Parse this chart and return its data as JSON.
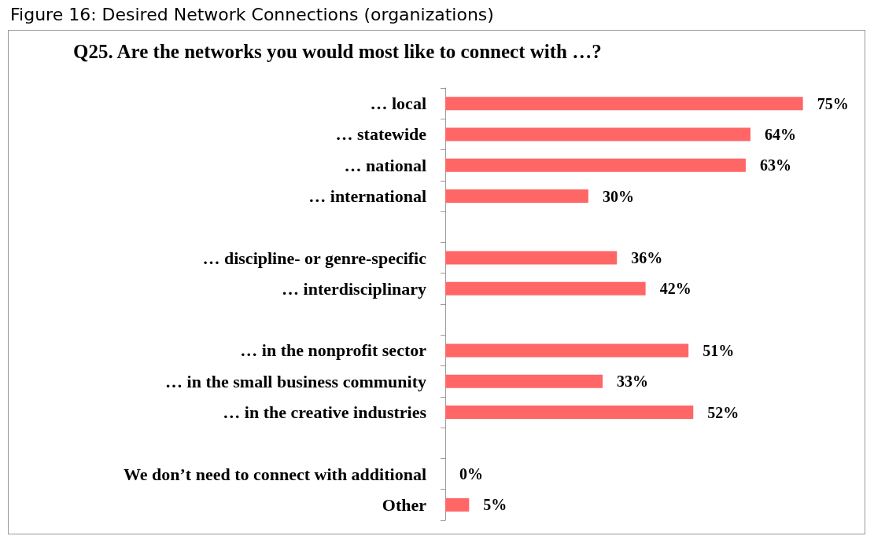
{
  "chart_data": {
    "type": "bar",
    "orientation": "horizontal",
    "title": "Figure 16: Desired Network Connections (organizations)",
    "subtitle": "Q25. Are the networks you would most like to connect with …?",
    "categories": [
      "… local",
      "… statewide",
      "… national",
      "… international",
      null,
      "… discipline- or genre-specific",
      "… interdisciplinary",
      null,
      "… in the nonprofit sector",
      "… in the small business community",
      "… in the creative industries",
      null,
      "We don’t need to connect with additional",
      "Other"
    ],
    "values": [
      75,
      64,
      63,
      30,
      null,
      36,
      42,
      null,
      51,
      33,
      52,
      null,
      0,
      5
    ],
    "value_labels": [
      "75%",
      "64%",
      "63%",
      "30%",
      null,
      "36%",
      "42%",
      null,
      "51%",
      "33%",
      "52%",
      null,
      "0%",
      "5%"
    ],
    "color": "#ff6666"
  }
}
